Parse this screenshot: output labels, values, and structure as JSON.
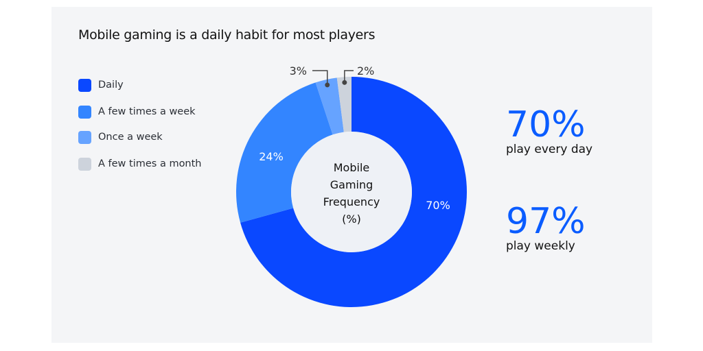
{
  "chart_data": {
    "type": "pie",
    "title": "Mobile gaming is a daily habit for most players",
    "center_label": [
      "Mobile",
      "Gaming",
      "Frequency",
      "(%)"
    ],
    "categories": [
      "Daily",
      "A few times a week",
      "Once a week",
      "A few times a month"
    ],
    "values": [
      70,
      24,
      3,
      2
    ],
    "labels": [
      "70%",
      "24%",
      "3%",
      "2%"
    ],
    "colors": [
      "#0a48ff",
      "#3385ff",
      "#66a3ff",
      "#cdd3dc"
    ],
    "legend_position": "left"
  },
  "stats": [
    {
      "value": "70%",
      "label": "play every day"
    },
    {
      "value": "97%",
      "label": "play weekly"
    }
  ]
}
